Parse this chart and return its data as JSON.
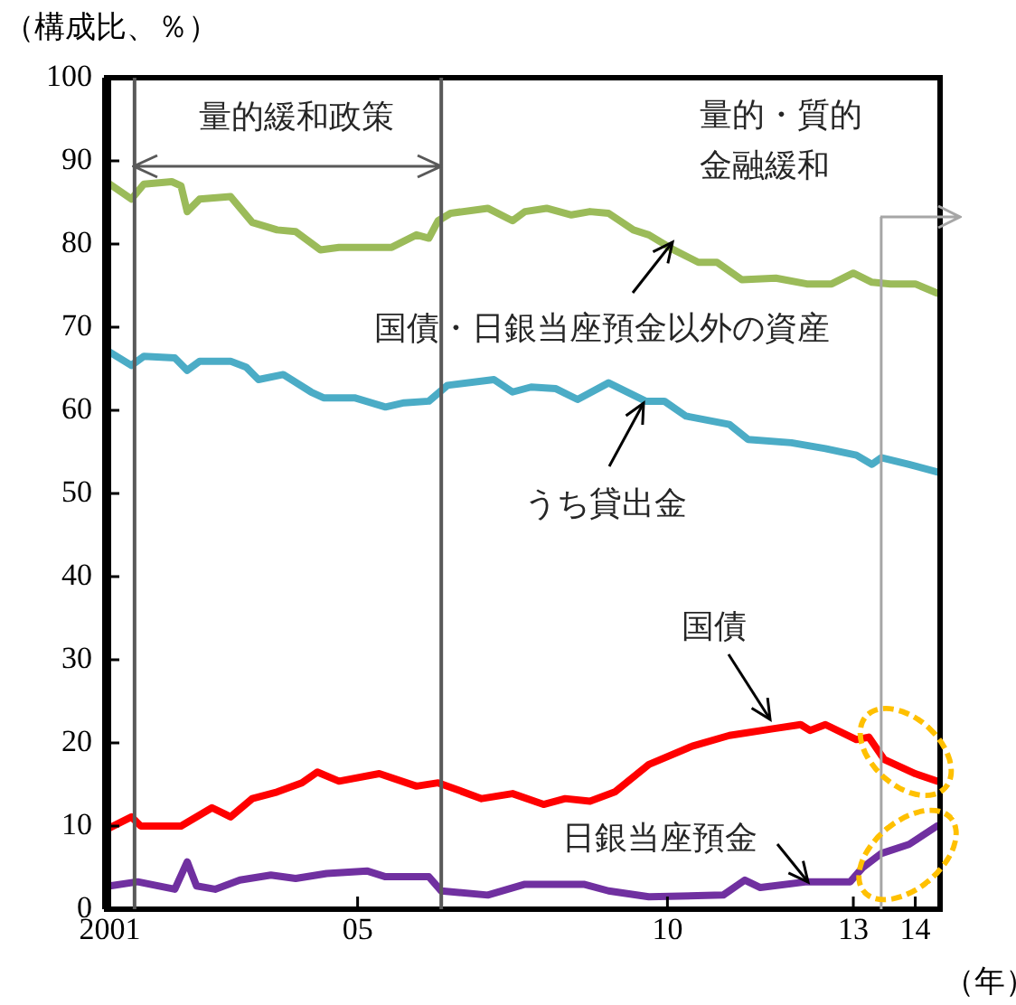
{
  "chart_data": {
    "type": "line",
    "ylabel": "（構成比、％）",
    "xlabel": "（年）",
    "xlim": [
      2000.95,
      2014.4
    ],
    "xticks": [
      {
        "value": 2001,
        "label": "2001"
      },
      {
        "value": 2005,
        "label": "05"
      },
      {
        "value": 2010,
        "label": "10"
      },
      {
        "value": 2013,
        "label": "13"
      },
      {
        "value": 2014,
        "label": "14"
      }
    ],
    "ylim": [
      0,
      100
    ],
    "yticks": [
      0,
      10,
      20,
      30,
      40,
      50,
      60,
      70,
      80,
      90,
      100
    ],
    "grid": false,
    "legend": false,
    "marker": "none",
    "line_style": "solid",
    "ref_lines": [
      {
        "axis": "x",
        "value": 2001.4,
        "color": "#595959"
      },
      {
        "axis": "x",
        "value": 2006.35,
        "color": "#595959"
      },
      {
        "axis": "x",
        "value": 2013.45,
        "color": "#a6a6a6"
      }
    ],
    "annotations": [
      "量的緩和政策",
      "量的・質的金融緩和"
    ],
    "series": [
      {
        "name": "国債・日銀当座預金以外の資産",
        "color": "#9bbb59",
        "x": [
          2001.0,
          2001.35,
          2001.55,
          2002.0,
          2002.15,
          2002.25,
          2002.45,
          2002.95,
          2003.3,
          2003.7,
          2004.0,
          2004.4,
          2004.7,
          2005.55,
          2005.95,
          2006.15,
          2006.3,
          2006.5,
          2007.1,
          2007.5,
          2007.7,
          2008.05,
          2008.45,
          2008.75,
          2009.05,
          2009.45,
          2009.7,
          2010.1,
          2010.5,
          2010.8,
          2011.2,
          2011.75,
          2012.25,
          2012.65,
          2013.0,
          2013.3,
          2013.6,
          2014.0,
          2014.35
        ],
        "values": [
          87.2,
          85.4,
          87.2,
          87.5,
          87.0,
          83.9,
          85.4,
          85.7,
          82.6,
          81.7,
          81.5,
          79.3,
          79.6,
          79.6,
          81.1,
          80.7,
          82.8,
          83.7,
          84.3,
          82.8,
          83.9,
          84.3,
          83.5,
          83.9,
          83.7,
          81.7,
          81.1,
          79.3,
          77.8,
          77.8,
          75.7,
          75.9,
          75.2,
          75.2,
          76.5,
          75.4,
          75.2,
          75.2,
          74.1
        ]
      },
      {
        "name": "うち貸出金",
        "color": "#4bacc6",
        "x": [
          2001.0,
          2001.35,
          2001.55,
          2002.05,
          2002.25,
          2002.45,
          2002.95,
          2003.2,
          2003.4,
          2003.8,
          2004.25,
          2004.45,
          2004.95,
          2005.45,
          2005.75,
          2006.15,
          2006.45,
          2007.2,
          2007.5,
          2007.8,
          2008.2,
          2008.55,
          2009.05,
          2009.65,
          2009.95,
          2010.3,
          2011.0,
          2011.3,
          2012.0,
          2012.55,
          2013.05,
          2013.3,
          2013.45,
          2013.9,
          2014.35
        ],
        "values": [
          67.0,
          65.4,
          66.5,
          66.3,
          64.8,
          65.9,
          65.9,
          65.2,
          63.7,
          64.3,
          62.2,
          61.5,
          61.5,
          60.4,
          60.9,
          61.1,
          63.0,
          63.7,
          62.2,
          62.8,
          62.6,
          61.3,
          63.3,
          61.1,
          61.1,
          59.3,
          58.3,
          56.5,
          56.1,
          55.4,
          54.6,
          53.5,
          54.3,
          53.5,
          52.6
        ]
      },
      {
        "name": "国債",
        "color": "#ff0000",
        "x": [
          2001.0,
          2001.35,
          2001.5,
          2002.15,
          2002.65,
          2002.95,
          2003.3,
          2003.7,
          2004.1,
          2004.35,
          2004.7,
          2005.35,
          2005.95,
          2006.3,
          2007.0,
          2007.5,
          2008.0,
          2008.35,
          2008.75,
          2009.15,
          2009.7,
          2010.4,
          2011.0,
          2011.7,
          2012.15,
          2012.3,
          2012.55,
          2013.05,
          2013.25,
          2013.5,
          2014.0,
          2014.35
        ],
        "values": [
          9.8,
          11.1,
          10.0,
          10.0,
          12.2,
          11.1,
          13.3,
          14.1,
          15.2,
          16.5,
          15.4,
          16.3,
          14.8,
          15.2,
          13.3,
          13.9,
          12.6,
          13.3,
          13.0,
          14.1,
          17.4,
          19.6,
          20.9,
          21.7,
          22.2,
          21.5,
          22.2,
          20.4,
          20.7,
          18.0,
          16.3,
          15.4
        ]
      },
      {
        "name": "日銀当座預金",
        "color": "#7030a0",
        "x": [
          2001.0,
          2001.45,
          2002.05,
          2002.25,
          2002.4,
          2002.7,
          2003.1,
          2003.6,
          2004.0,
          2004.5,
          2005.15,
          2005.45,
          2006.15,
          2006.35,
          2007.1,
          2007.7,
          2008.65,
          2009.05,
          2009.7,
          2010.9,
          2011.25,
          2011.5,
          2012.25,
          2012.95,
          2013.15,
          2013.45,
          2013.9,
          2014.35
        ],
        "values": [
          2.8,
          3.3,
          2.4,
          5.7,
          2.8,
          2.4,
          3.5,
          4.1,
          3.7,
          4.3,
          4.6,
          3.9,
          3.9,
          2.2,
          1.7,
          3.0,
          3.0,
          2.2,
          1.5,
          1.7,
          3.5,
          2.6,
          3.3,
          3.3,
          5.0,
          6.7,
          7.8,
          10.0
        ]
      }
    ]
  }
}
